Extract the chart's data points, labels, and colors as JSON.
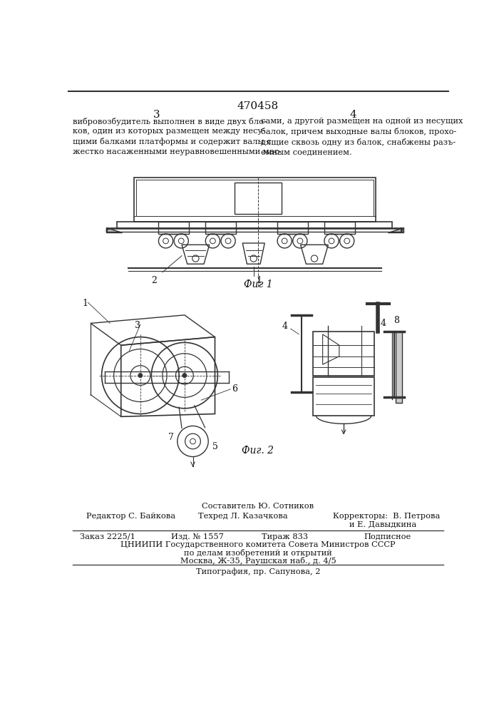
{
  "patent_number": "470458",
  "page_left": "3",
  "page_right": "4",
  "text_left": "вибровозбудитель выполнен в виде двух бло-\nков, один из которых размещен между несу-\nщими балками платформы и содержит валы с\nжестко насаженными неуравновешенными мас-",
  "text_right": "сами, а другой размещен на одной из несущих\nбалок, причем выходные валы блоков, прохо-\nдящие сквозь одну из балок, снабжены разъ-\nемным соединением.",
  "fig1_label": "Фиг 1",
  "fig2_label": "Фиг. 2",
  "footer_compiler": "Составитель Ю. Сотников",
  "footer_editor": "Редактор С. Байкова",
  "footer_techred": "Техред Л. Казачкова",
  "footer_correctors_line1": "Корректоры:  В. Петрова",
  "footer_correctors_line2": "и Е. Давыдкина",
  "footer_order": "Заказ 2225/1",
  "footer_izdanie": "Изд. № 1557",
  "footer_tirazh": "Тираж 833",
  "footer_podpisnoe": "Подписное",
  "footer_tsniip": "ЦНИИПИ Государственного комитета Совета Министров СССР",
  "footer_po_delam": "по делам изобретений и открытий",
  "footer_moscow": "Москва, Ж-35, Раушская наб., д. 4/5",
  "footer_tipografiya": "Типография, пр. Сапунова, 2",
  "bg_color": "#ffffff",
  "line_color": "#333333",
  "text_color": "#111111"
}
